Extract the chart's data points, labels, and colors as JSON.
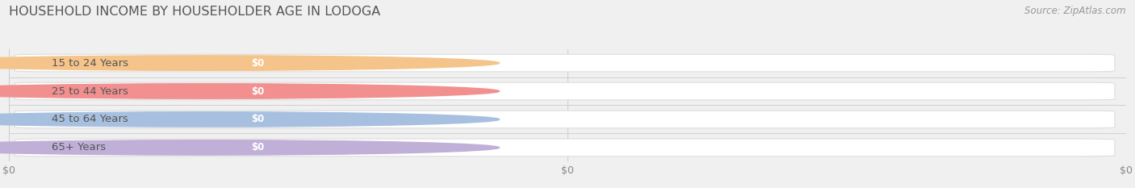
{
  "title": "HOUSEHOLD INCOME BY HOUSEHOLDER AGE IN LODOGA",
  "source": "Source: ZipAtlas.com",
  "categories": [
    "15 to 24 Years",
    "25 to 44 Years",
    "45 to 64 Years",
    "65+ Years"
  ],
  "values": [
    0,
    0,
    0,
    0
  ],
  "bar_colors": [
    "#f5c48a",
    "#f29090",
    "#a8c0e0",
    "#c0b0d8"
  ],
  "background_color": "#f0f0f0",
  "figsize": [
    14.06,
    2.33
  ],
  "dpi": 100,
  "title_fontsize": 11.5,
  "label_fontsize": 9.5,
  "value_fontsize": 8.5,
  "source_fontsize": 8.5,
  "xtick_labels": [
    "$0",
    "$0",
    "$0"
  ],
  "xtick_positions": [
    0.0,
    0.5,
    1.0
  ]
}
